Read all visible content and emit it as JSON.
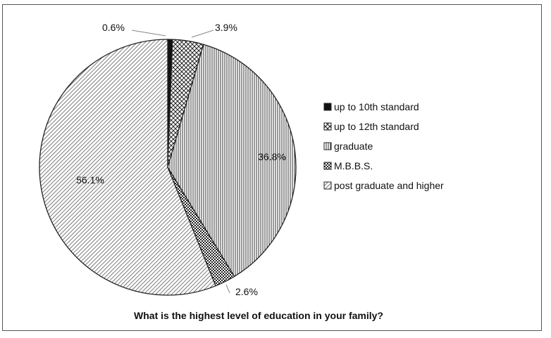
{
  "chart_data": {
    "type": "pie",
    "title": "What is the highest level of education in your family?",
    "legend_position": "right",
    "slices": [
      {
        "label": "up to 10th standard",
        "value": 0.6,
        "value_label": "0.6%",
        "pattern": "solid"
      },
      {
        "label": "up to 12th standard",
        "value": 3.9,
        "value_label": "3.9%",
        "pattern": "crosshatch"
      },
      {
        "label": "graduate",
        "value": 36.8,
        "value_label": "36.8%",
        "pattern": "vertical-lines"
      },
      {
        "label": "M.B.B.S.",
        "value": 2.6,
        "value_label": "2.6%",
        "pattern": "checker"
      },
      {
        "label": "post graduate and higher",
        "value": 56.1,
        "value_label": "56.1%",
        "pattern": "diagonal-lines"
      }
    ]
  }
}
